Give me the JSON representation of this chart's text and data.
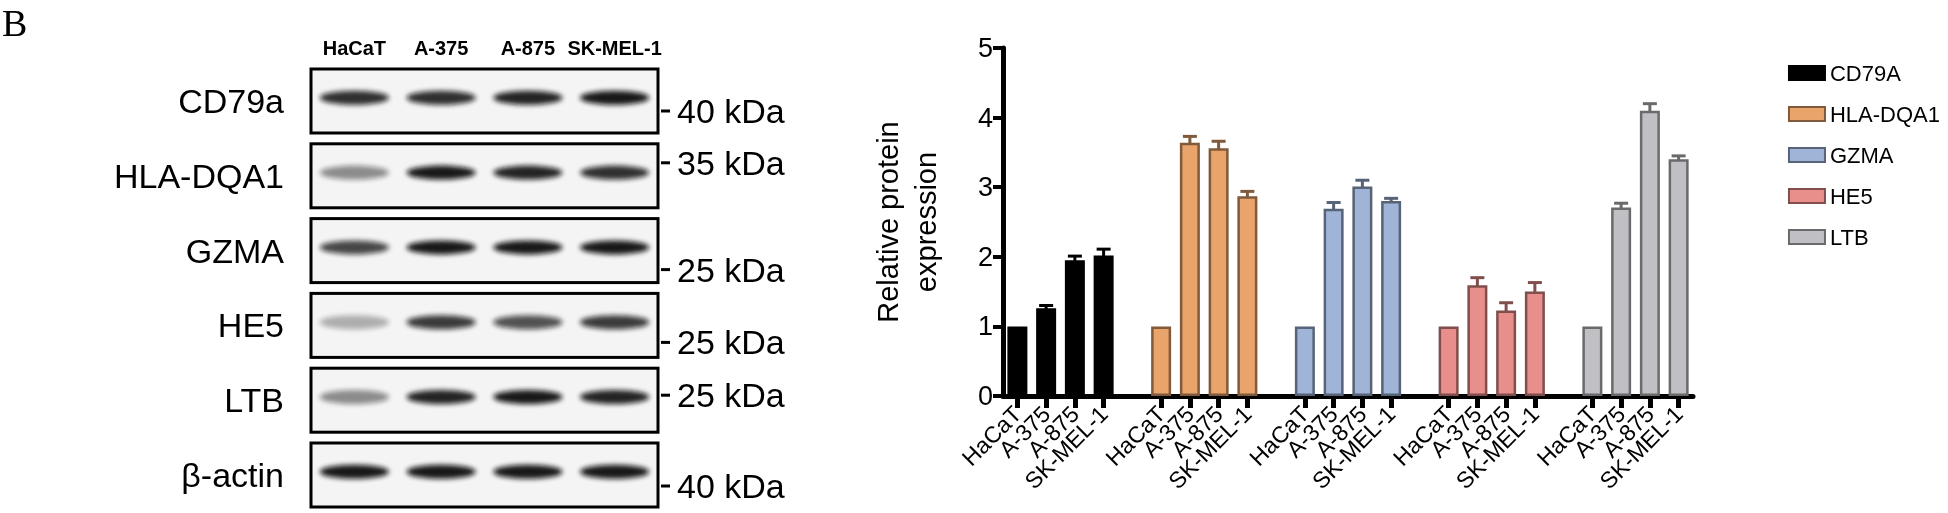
{
  "chart_data": [
    {
      "type": "other",
      "title": "B",
      "categories": [
        "HaCaT",
        "A-375",
        "A-875",
        "SK-MEL-1"
      ],
      "y_categories": [
        "CD79a",
        "HLA-DQA1",
        "GZMA",
        "HE5",
        "LTB",
        "β-actin"
      ],
      "y2_categories": [
        "40 kDa",
        "35 kDa",
        "25 kDa",
        "25 kDa",
        "25 kDa",
        "40 kDa"
      ]
    },
    {
      "type": "bar",
      "ylabel": "Relative protein expression",
      "categories": [
        "HaCaT",
        "A-375",
        "A-875",
        "SK-MEL-1",
        "HaCaT",
        "A-375",
        "A-875",
        "SK-MEL-1",
        "HaCaT",
        "A-375",
        "A-875",
        "SK-MEL-1",
        "HaCaT",
        "A-375",
        "A-875",
        "SK-MEL-1",
        "HaCaT",
        "A-375",
        "A-875",
        "SK-MEL-1"
      ],
      "series": [
        {
          "name": "CD79A",
          "color": "#000000",
          "values": [
            1,
            1.26,
            1.95,
            2.02,
            null,
            null,
            null,
            null,
            null,
            null,
            null,
            null,
            null,
            null,
            null,
            null,
            null,
            null,
            null,
            null
          ],
          "errors": [
            null,
            0.04,
            0.06,
            0.09,
            null,
            null,
            null,
            null,
            null,
            null,
            null,
            null,
            null,
            null,
            null,
            null,
            null,
            null,
            null,
            null
          ]
        },
        {
          "name": "HLA-DQA1",
          "color": "#e8a46a",
          "values": [
            null,
            null,
            null,
            null,
            1,
            3.64,
            3.56,
            2.87,
            null,
            null,
            null,
            null,
            null,
            null,
            null,
            null,
            null,
            null,
            null,
            null
          ],
          "errors": [
            null,
            null,
            null,
            null,
            null,
            0.09,
            0.1,
            0.07,
            null,
            null,
            null,
            null,
            null,
            null,
            null,
            null,
            null,
            null,
            null,
            null
          ]
        },
        {
          "name": "GZMA",
          "color": "#9fb4d6",
          "values": [
            null,
            null,
            null,
            null,
            null,
            null,
            null,
            null,
            1,
            2.69,
            3.01,
            2.8,
            null,
            null,
            null,
            null,
            null,
            null,
            null,
            null
          ],
          "errors": [
            null,
            null,
            null,
            null,
            null,
            null,
            null,
            null,
            null,
            0.09,
            0.09,
            0.04,
            null,
            null,
            null,
            null,
            null,
            null,
            null,
            null
          ]
        },
        {
          "name": "HE5",
          "color": "#e88f8c",
          "values": [
            null,
            null,
            null,
            null,
            null,
            null,
            null,
            null,
            null,
            null,
            null,
            null,
            1,
            1.59,
            1.23,
            1.5,
            null,
            null,
            null,
            null
          ],
          "errors": [
            null,
            null,
            null,
            null,
            null,
            null,
            null,
            null,
            null,
            null,
            null,
            null,
            null,
            0.11,
            0.11,
            0.13,
            null,
            null,
            null,
            null
          ]
        },
        {
          "name": "LTB",
          "color": "#c0c0c4",
          "values": [
            null,
            null,
            null,
            null,
            null,
            null,
            null,
            null,
            null,
            null,
            null,
            null,
            null,
            null,
            null,
            null,
            1,
            2.71,
            4.1,
            3.4
          ],
          "errors": [
            null,
            null,
            null,
            null,
            null,
            null,
            null,
            null,
            null,
            null,
            null,
            null,
            null,
            null,
            null,
            null,
            null,
            0.06,
            0.1,
            0.05
          ]
        }
      ],
      "ylim": [
        0,
        5
      ],
      "yticks": [
        0,
        1,
        2,
        3,
        4,
        5
      ],
      "legend": "top right"
    }
  ]
}
